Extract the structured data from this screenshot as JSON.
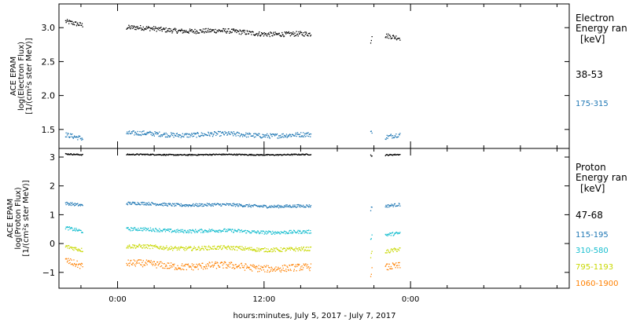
{
  "xlabel": "hours:minutes, July  5, 2017 - July  7, 2017",
  "x_ticks": [
    {
      "hour": 0,
      "label": "0:00"
    },
    {
      "hour": 12,
      "label": "12:00"
    },
    {
      "hour": 24,
      "label": "0:00"
    }
  ],
  "x_minor_hours": [
    -3,
    3,
    6,
    9,
    15,
    18,
    21,
    27,
    30,
    33,
    36
  ],
  "xlim": [
    -4.8,
    37.0
  ],
  "colors": {
    "black": "#000000",
    "blue": "#1f77b4",
    "cyan": "#17becf",
    "yellow": "#c8d800",
    "orange": "#ff8000"
  },
  "chart_data": [
    {
      "type": "scatter",
      "ylabel_lines": [
        "ACE EPAM",
        "log(Electron Flux)",
        "[1/(cm²s ster MeV)]"
      ],
      "ylim": [
        1.22,
        3.35
      ],
      "y_ticks": [
        1.5,
        2.0,
        2.5,
        3.0
      ],
      "y_tick_labels": [
        "1.5",
        "2.0",
        "2.5",
        "3.0"
      ],
      "legend": {
        "title_lines": [
          "Electron",
          "Energy ran",
          "[keV]"
        ]
      },
      "series": [
        {
          "name": "38-53",
          "color": "black",
          "noise": 0.035,
          "segments": [
            {
              "x": [
                -4.3,
                -2.9
              ],
              "y": [
                3.09,
                3.05
              ]
            },
            {
              "x": [
                0.7,
                15.8
              ],
              "y": [
                3.0,
                2.9
              ]
            },
            {
              "x": [
                20.7,
                20.8
              ],
              "y": [
                2.8,
                2.9
              ]
            },
            {
              "x": [
                21.9,
                23.1
              ],
              "y": [
                2.88,
                2.84
              ]
            }
          ]
        },
        {
          "name": "175-315",
          "color": "blue",
          "noise": 0.035,
          "segments": [
            {
              "x": [
                -4.3,
                -2.9
              ],
              "y": [
                1.42,
                1.38
              ]
            },
            {
              "x": [
                0.7,
                15.8
              ],
              "y": [
                1.44,
                1.42
              ]
            },
            {
              "x": [
                20.7,
                20.8
              ],
              "y": [
                1.48,
                1.44
              ]
            },
            {
              "x": [
                21.9,
                23.1
              ],
              "y": [
                1.38,
                1.42
              ]
            }
          ]
        }
      ]
    },
    {
      "type": "scatter",
      "ylabel_lines": [
        "ACE EPAM",
        "log(Proton Flux)",
        "[1/(cm²s ster MeV)]"
      ],
      "ylim": [
        -1.55,
        3.3
      ],
      "y_ticks": [
        -1,
        0,
        1,
        2,
        3
      ],
      "y_tick_labels": [
        "−1",
        "0",
        "1",
        "2",
        "3"
      ],
      "legend": {
        "title_lines": [
          "Proton",
          "Energy ran",
          "[keV]"
        ]
      },
      "series": [
        {
          "name": "47-68",
          "color": "black",
          "noise": 0.02,
          "segments": [
            {
              "x": [
                -4.3,
                -2.9
              ],
              "y": [
                3.12,
                3.1
              ]
            },
            {
              "x": [
                0.7,
                15.8
              ],
              "y": [
                3.1,
                3.1
              ]
            },
            {
              "x": [
                20.7,
                20.8
              ],
              "y": [
                3.08,
                3.05
              ]
            },
            {
              "x": [
                21.9,
                23.1
              ],
              "y": [
                3.08,
                3.1
              ]
            }
          ]
        },
        {
          "name": "115-195",
          "color": "blue",
          "noise": 0.05,
          "segments": [
            {
              "x": [
                -4.3,
                -2.9
              ],
              "y": [
                1.4,
                1.35
              ]
            },
            {
              "x": [
                0.7,
                15.8
              ],
              "y": [
                1.4,
                1.3
              ]
            },
            {
              "x": [
                20.7,
                20.8
              ],
              "y": [
                1.2,
                1.3
              ]
            },
            {
              "x": [
                21.9,
                23.1
              ],
              "y": [
                1.3,
                1.35
              ]
            }
          ]
        },
        {
          "name": "310-580",
          "color": "cyan",
          "noise": 0.06,
          "segments": [
            {
              "x": [
                -4.3,
                -2.9
              ],
              "y": [
                0.55,
                0.45
              ]
            },
            {
              "x": [
                0.7,
                15.8
              ],
              "y": [
                0.5,
                0.4
              ]
            },
            {
              "x": [
                20.7,
                20.8
              ],
              "y": [
                0.2,
                0.3
              ]
            },
            {
              "x": [
                21.9,
                23.1
              ],
              "y": [
                0.3,
                0.35
              ]
            }
          ]
        },
        {
          "name": "795-1193",
          "color": "yellow",
          "noise": 0.07,
          "segments": [
            {
              "x": [
                -4.3,
                -2.9
              ],
              "y": [
                -0.1,
                -0.2
              ]
            },
            {
              "x": [
                0.7,
                15.8
              ],
              "y": [
                -0.1,
                -0.2
              ]
            },
            {
              "x": [
                20.7,
                20.8
              ],
              "y": [
                -0.4,
                -0.3
              ]
            },
            {
              "x": [
                21.9,
                23.1
              ],
              "y": [
                -0.3,
                -0.2
              ]
            }
          ]
        },
        {
          "name": "1060-1900",
          "color": "orange",
          "noise": 0.12,
          "segments": [
            {
              "x": [
                -4.3,
                -2.9
              ],
              "y": [
                -0.6,
                -0.75
              ]
            },
            {
              "x": [
                0.7,
                15.8
              ],
              "y": [
                -0.7,
                -0.85
              ]
            },
            {
              "x": [
                20.7,
                20.8
              ],
              "y": [
                -1.0,
                -0.9
              ]
            },
            {
              "x": [
                21.9,
                23.1
              ],
              "y": [
                -0.85,
                -0.8
              ]
            }
          ]
        }
      ]
    }
  ]
}
